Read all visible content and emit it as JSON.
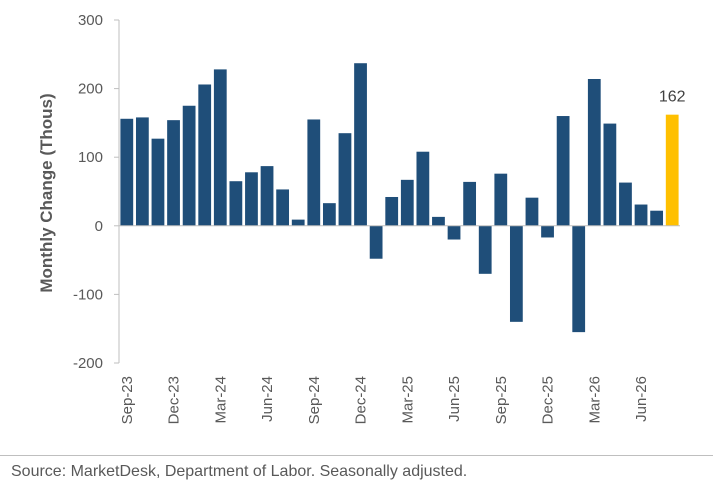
{
  "chart_data": {
    "type": "bar",
    "ylabel": "Monthly Change (Thous)",
    "ylim": [
      -200,
      300
    ],
    "yticks": [
      -200,
      -100,
      0,
      100,
      200,
      300
    ],
    "xtick_labels": [
      "Sep-23",
      "Dec-23",
      "Mar-24",
      "Jun-24",
      "Sep-24",
      "Dec-24",
      "Mar-25",
      "Jun-25",
      "Sep-25",
      "Dec-25",
      "Mar-26",
      "Jun-26"
    ],
    "categories": [
      "Sep-23",
      "Oct-23",
      "Nov-23",
      "Dec-23",
      "Jan-24",
      "Feb-24",
      "Mar-24",
      "Apr-24",
      "May-24",
      "Jun-24",
      "Jul-24",
      "Aug-24",
      "Sep-24",
      "Oct-24",
      "Nov-24",
      "Dec-24",
      "Jan-25",
      "Feb-25",
      "Mar-25",
      "Apr-25",
      "May-25",
      "Jun-25",
      "Jul-25",
      "Aug-25",
      "Sep-25",
      "Oct-25",
      "Nov-25",
      "Dec-25",
      "Jan-26",
      "Feb-26",
      "Mar-26",
      "Apr-26",
      "May-26",
      "Jun-26",
      "Jul-26",
      "Aug-26"
    ],
    "values": [
      156,
      158,
      127,
      154,
      175,
      206,
      228,
      65,
      78,
      87,
      53,
      9,
      155,
      33,
      135,
      237,
      -48,
      42,
      67,
      108,
      13,
      -20,
      64,
      -70,
      76,
      -140,
      41,
      -17,
      160,
      -155,
      214,
      149,
      63,
      31,
      22,
      162
    ],
    "highlight_last": true,
    "highlight_label": "162",
    "colors": {
      "bar": "#1f4e79",
      "highlight": "#ffc000",
      "axis": "#bfbfbf"
    },
    "grid": false,
    "legend": "none"
  },
  "footer": {
    "source": "Source: MarketDesk, Department of Labor. Seasonally adjusted."
  }
}
